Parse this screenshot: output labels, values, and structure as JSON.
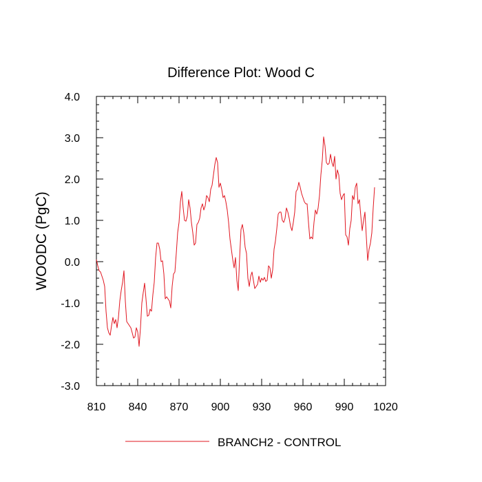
{
  "chart_data": {
    "type": "line",
    "title": "Difference Plot: Wood C",
    "xlabel": "",
    "ylabel": "WOODC  (PgC)",
    "xlim": [
      810,
      1020
    ],
    "ylim": [
      -3.0,
      4.0
    ],
    "x_ticks": [
      810,
      840,
      870,
      900,
      930,
      960,
      990,
      1020
    ],
    "y_ticks": [
      -3.0,
      -2.0,
      -1.0,
      0.0,
      1.0,
      2.0,
      3.0,
      4.0
    ],
    "x_tick_labels": [
      "810",
      "840",
      "870",
      "900",
      "930",
      "960",
      "990",
      "1020"
    ],
    "y_tick_labels": [
      "-3.0",
      "-2.0",
      "-1.0",
      "0.0",
      "1.0",
      "2.0",
      "3.0",
      "4.0"
    ],
    "grid": false,
    "legend_position": "bottom",
    "series": [
      {
        "name": "BRANCH2 - CONTROL",
        "color": "#e0141e",
        "points": [
          [
            810,
            0.05
          ],
          [
            811,
            -0.1
          ],
          [
            812,
            -0.22
          ],
          [
            813,
            -0.25
          ],
          [
            814,
            -0.35
          ],
          [
            815,
            -0.45
          ],
          [
            816,
            -0.6
          ],
          [
            817,
            -1.2
          ],
          [
            818,
            -1.6
          ],
          [
            819,
            -1.72
          ],
          [
            820,
            -1.78
          ],
          [
            821,
            -1.55
          ],
          [
            822,
            -1.35
          ],
          [
            823,
            -1.5
          ],
          [
            824,
            -1.4
          ],
          [
            825,
            -1.6
          ],
          [
            826,
            -1.35
          ],
          [
            827,
            -0.95
          ],
          [
            828,
            -0.7
          ],
          [
            829,
            -0.5
          ],
          [
            830,
            -0.22
          ],
          [
            831,
            -0.95
          ],
          [
            832,
            -1.45
          ],
          [
            833,
            -1.5
          ],
          [
            834,
            -1.55
          ],
          [
            835,
            -1.6
          ],
          [
            836,
            -1.72
          ],
          [
            837,
            -1.85
          ],
          [
            838,
            -1.82
          ],
          [
            839,
            -1.6
          ],
          [
            840,
            -1.7
          ],
          [
            841,
            -2.05
          ],
          [
            842,
            -1.6
          ],
          [
            843,
            -1.0
          ],
          [
            844,
            -0.75
          ],
          [
            845,
            -0.52
          ],
          [
            846,
            -0.9
          ],
          [
            847,
            -1.32
          ],
          [
            848,
            -1.3
          ],
          [
            849,
            -1.15
          ],
          [
            850,
            -1.2
          ],
          [
            851,
            -0.8
          ],
          [
            852,
            -0.5
          ],
          [
            853,
            0.1
          ],
          [
            854,
            0.45
          ],
          [
            855,
            0.45
          ],
          [
            856,
            0.3
          ],
          [
            857,
            0.0
          ],
          [
            858,
            0.02
          ],
          [
            859,
            -0.3
          ],
          [
            860,
            -0.9
          ],
          [
            861,
            -0.85
          ],
          [
            862,
            -0.9
          ],
          [
            863,
            -0.95
          ],
          [
            864,
            -1.12
          ],
          [
            865,
            -0.6
          ],
          [
            866,
            -0.3
          ],
          [
            867,
            -0.25
          ],
          [
            868,
            0.2
          ],
          [
            869,
            0.7
          ],
          [
            870,
            0.95
          ],
          [
            871,
            1.45
          ],
          [
            872,
            1.7
          ],
          [
            873,
            1.3
          ],
          [
            874,
            1.0
          ],
          [
            875,
            0.98
          ],
          [
            876,
            1.1
          ],
          [
            877,
            1.5
          ],
          [
            878,
            1.3
          ],
          [
            879,
            0.95
          ],
          [
            880,
            0.7
          ],
          [
            881,
            0.4
          ],
          [
            882,
            0.45
          ],
          [
            883,
            0.9
          ],
          [
            884,
            0.95
          ],
          [
            885,
            1.05
          ],
          [
            886,
            1.3
          ],
          [
            887,
            1.4
          ],
          [
            888,
            1.25
          ],
          [
            889,
            1.35
          ],
          [
            890,
            1.6
          ],
          [
            891,
            1.55
          ],
          [
            892,
            1.45
          ],
          [
            893,
            1.75
          ],
          [
            894,
            1.85
          ],
          [
            895,
            2.1
          ],
          [
            896,
            2.35
          ],
          [
            897,
            2.52
          ],
          [
            898,
            2.4
          ],
          [
            899,
            1.8
          ],
          [
            900,
            1.9
          ],
          [
            901,
            1.75
          ],
          [
            902,
            1.55
          ],
          [
            903,
            1.6
          ],
          [
            904,
            1.45
          ],
          [
            905,
            1.25
          ],
          [
            906,
            0.95
          ],
          [
            907,
            0.55
          ],
          [
            908,
            0.3
          ],
          [
            909,
            0.05
          ],
          [
            910,
            -0.15
          ],
          [
            911,
            0.1
          ],
          [
            912,
            -0.45
          ],
          [
            913,
            -0.7
          ],
          [
            914,
            0.1
          ],
          [
            915,
            0.78
          ],
          [
            916,
            0.9
          ],
          [
            917,
            0.7
          ],
          [
            918,
            0.35
          ],
          [
            919,
            0.2
          ],
          [
            920,
            -0.4
          ],
          [
            921,
            -0.6
          ],
          [
            922,
            -0.35
          ],
          [
            923,
            -0.25
          ],
          [
            924,
            -0.45
          ],
          [
            925,
            -0.65
          ],
          [
            926,
            -0.6
          ],
          [
            927,
            -0.55
          ],
          [
            928,
            -0.35
          ],
          [
            929,
            -0.5
          ],
          [
            930,
            -0.4
          ],
          [
            931,
            -0.45
          ],
          [
            932,
            -0.38
          ],
          [
            933,
            -0.48
          ],
          [
            934,
            -0.45
          ],
          [
            935,
            -0.1
          ],
          [
            936,
            -0.15
          ],
          [
            937,
            -0.4
          ],
          [
            938,
            -0.2
          ],
          [
            939,
            0.3
          ],
          [
            940,
            0.5
          ],
          [
            941,
            0.8
          ],
          [
            942,
            1.15
          ],
          [
            943,
            1.2
          ],
          [
            944,
            1.2
          ],
          [
            945,
            1.0
          ],
          [
            946,
            0.95
          ],
          [
            947,
            1.05
          ],
          [
            948,
            1.3
          ],
          [
            949,
            1.2
          ],
          [
            950,
            1.05
          ],
          [
            951,
            0.85
          ],
          [
            952,
            0.75
          ],
          [
            953,
            0.95
          ],
          [
            954,
            1.2
          ],
          [
            955,
            1.7
          ],
          [
            956,
            1.75
          ],
          [
            957,
            1.92
          ],
          [
            958,
            1.8
          ],
          [
            959,
            1.65
          ],
          [
            960,
            1.55
          ],
          [
            961,
            1.45
          ],
          [
            962,
            1.4
          ],
          [
            963,
            1.4
          ],
          [
            964,
            0.95
          ],
          [
            965,
            0.55
          ],
          [
            966,
            0.6
          ],
          [
            967,
            0.55
          ],
          [
            968,
            0.95
          ],
          [
            969,
            1.25
          ],
          [
            970,
            1.15
          ],
          [
            971,
            1.3
          ],
          [
            972,
            1.6
          ],
          [
            973,
            2.1
          ],
          [
            974,
            2.45
          ],
          [
            975,
            3.02
          ],
          [
            976,
            2.8
          ],
          [
            977,
            2.4
          ],
          [
            978,
            2.35
          ],
          [
            979,
            2.38
          ],
          [
            980,
            2.6
          ],
          [
            981,
            2.4
          ],
          [
            982,
            2.3
          ],
          [
            983,
            2.55
          ],
          [
            984,
            2.0
          ],
          [
            985,
            2.22
          ],
          [
            986,
            2.1
          ],
          [
            987,
            1.65
          ],
          [
            988,
            1.5
          ],
          [
            989,
            1.6
          ],
          [
            990,
            1.65
          ],
          [
            991,
            0.65
          ],
          [
            992,
            0.6
          ],
          [
            993,
            0.4
          ],
          [
            994,
            0.8
          ],
          [
            995,
            1.0
          ],
          [
            996,
            1.6
          ],
          [
            997,
            1.5
          ],
          [
            998,
            1.8
          ],
          [
            999,
            1.9
          ],
          [
            1000,
            1.4
          ],
          [
            1001,
            1.5
          ],
          [
            1002,
            1.1
          ],
          [
            1003,
            0.75
          ],
          [
            1004,
            1.0
          ],
          [
            1005,
            1.2
          ],
          [
            1006,
            0.6
          ],
          [
            1007,
            0.03
          ],
          [
            1008,
            0.3
          ],
          [
            1009,
            0.45
          ],
          [
            1010,
            0.7
          ],
          [
            1011,
            1.3
          ],
          [
            1012,
            1.8
          ]
        ]
      }
    ]
  }
}
